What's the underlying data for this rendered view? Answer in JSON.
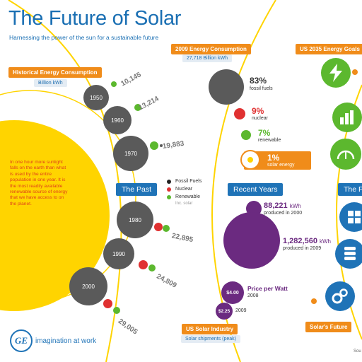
{
  "header": {
    "title": "The Future of Solar",
    "subtitle": "Harnessing the power of the sun for a sustainable future"
  },
  "historical": {
    "label": "Historical Energy Consumption",
    "unit": "Billion kWh",
    "years": [
      "1950",
      "1960",
      "1970",
      "1980",
      "1990",
      "2000"
    ],
    "values": [
      "10,145",
      "13,214",
      "19,883",
      "22,895",
      "24,809",
      "29,005"
    ]
  },
  "sun_fact": "In one hour more sunlight falls on the earth than what is used by the entire population in one year. It is the most readily available renewable source of energy that we have access to on the planet.",
  "past_label": "The Past",
  "legend": {
    "fossil": "Fossil Fuels",
    "nuclear": "Nuclear",
    "renewable": "Renewable",
    "renewable_note": "Inc. solar"
  },
  "consumption_2009": {
    "label": "2009 Energy Consumption",
    "total": "27,718 Billion kWh",
    "fossil_pct": "83%",
    "fossil_label": "fossil fuels",
    "nuclear_pct": "9%",
    "nuclear_label": "nuclear",
    "renewable_pct": "7%",
    "renewable_label": "renewable",
    "solar_pct": "1%",
    "solar_label": "solar energy"
  },
  "recent_label": "Recent Years",
  "solar_production": {
    "value_2000": "88,221",
    "unit": "kWh",
    "note_2000": "produced in 2000",
    "value_2009": "1,282,560",
    "note_2009": "produced in 2009"
  },
  "price": {
    "price_2008": "$4.00",
    "label": "Price per Watt",
    "year_2008": "2008",
    "price_2009": "$2.25",
    "year_2009": "2009"
  },
  "industry": {
    "label": "US Solar Industry",
    "sub": "Solar shipments (peak)"
  },
  "goals": {
    "label": "US 2035 Energy Goals",
    "future_label": "The Fu",
    "footer_label": "Solar's Future"
  },
  "brand": {
    "logo_text": "GE",
    "tagline": "imagination at work"
  },
  "source_fragment": "Sou",
  "colors": {
    "blue": "#1f73b7",
    "orange": "#f08c1a",
    "grey": "#5a5a5a",
    "red": "#e03131",
    "green": "#5cb82e",
    "purple": "#6b2a80",
    "yellow": "#ffd400"
  }
}
